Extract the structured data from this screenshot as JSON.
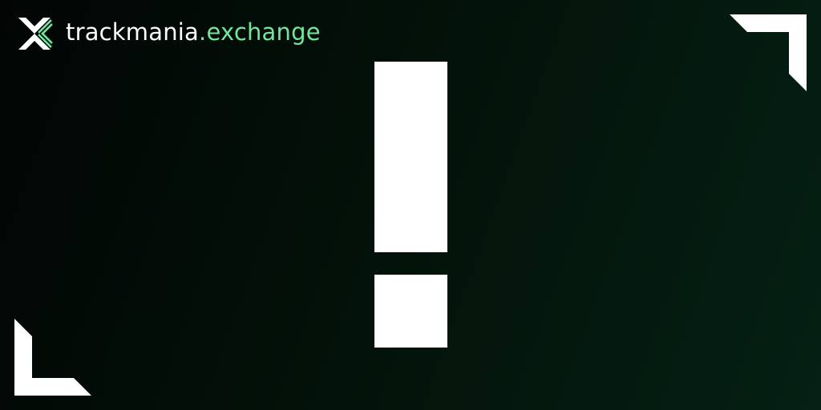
{
  "brand": {
    "name": "trackmania",
    "tld": ".exchange",
    "logo_icon": "tmx-logo-icon"
  },
  "error_graphic": {
    "icon": "exclamation-mark-icon"
  },
  "decorations": {
    "top_right": "corner-bracket-icon",
    "bottom_left": "corner-bracket-icon"
  },
  "colors": {
    "background_dark": "#020504",
    "background_green": "#052014",
    "accent": "#74e59c",
    "foreground": "#ffffff"
  }
}
